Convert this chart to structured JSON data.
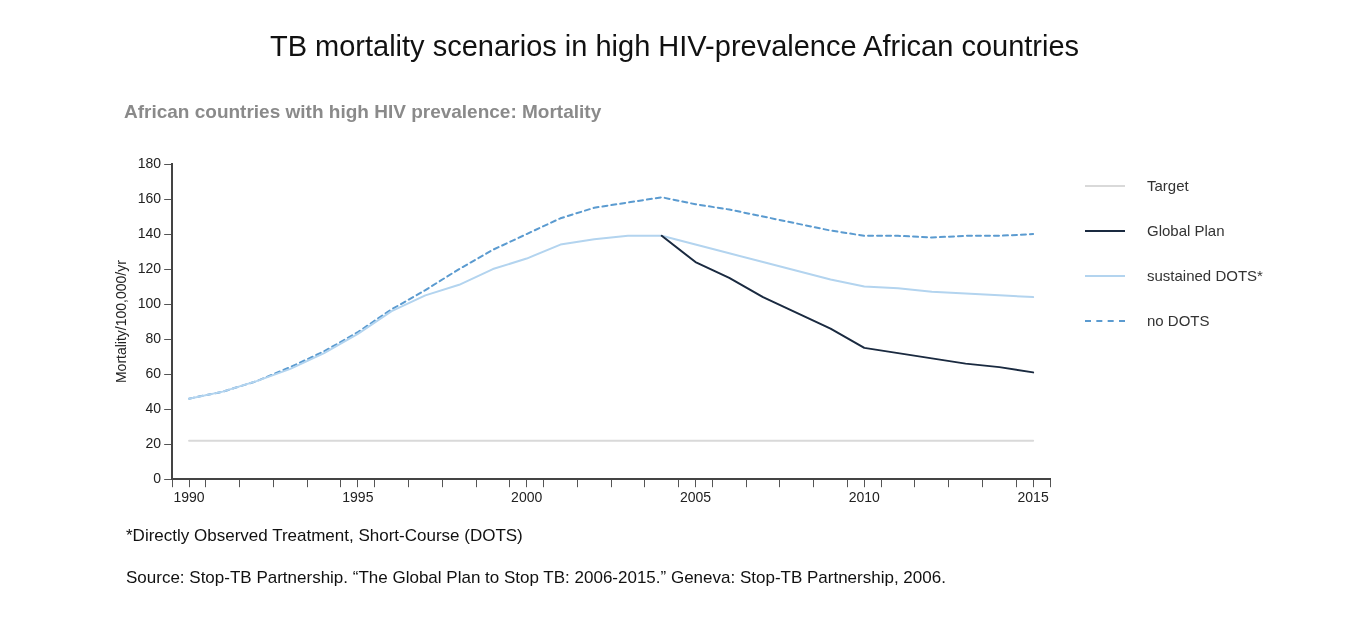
{
  "chart_data": {
    "type": "line",
    "title": "TB mortality scenarios in high HIV-prevalence African countries",
    "subtitle": "African countries with high HIV prevalence: Mortality",
    "ylabel": "Mortality/100,000/yr",
    "x": [
      1990,
      1991,
      1992,
      1993,
      1994,
      1995,
      1996,
      1997,
      1998,
      1999,
      2000,
      2001,
      2002,
      2003,
      2004,
      2005,
      2006,
      2007,
      2008,
      2009,
      2010,
      2011,
      2012,
      2013,
      2014,
      2015
    ],
    "series": [
      {
        "name": "Target",
        "color": "#d9d9d9",
        "x": [
          1990,
          2015
        ],
        "values": [
          22,
          22
        ]
      },
      {
        "name": "Global Plan",
        "color": "#1a2a40",
        "values": [
          null,
          null,
          null,
          null,
          null,
          null,
          null,
          null,
          null,
          null,
          null,
          null,
          null,
          null,
          139,
          124,
          115,
          104,
          95,
          86,
          75,
          72,
          69,
          66,
          64,
          61
        ]
      },
      {
        "name": "sustained DOTS*",
        "color": "#b3d4ef",
        "values": [
          46,
          50,
          56,
          63,
          72,
          83,
          96,
          105,
          111,
          120,
          126,
          134,
          137,
          139,
          139,
          134,
          129,
          124,
          119,
          114,
          110,
          109,
          107,
          106,
          105,
          104
        ]
      },
      {
        "name": "no DOTS",
        "color": "#5b9bd0",
        "line_style": "dashed",
        "values": [
          46,
          50,
          56,
          64,
          73,
          84,
          97,
          108,
          120,
          131,
          140,
          149,
          155,
          158,
          161,
          157,
          154,
          150,
          146,
          142,
          139,
          139,
          138,
          139,
          139,
          140
        ]
      }
    ],
    "xlim": [
      1989.5,
      2015.5
    ],
    "xticks": [
      {
        "value": 1989.5,
        "label": null
      },
      1990,
      {
        "value": 1990.5,
        "label": null
      },
      {
        "value": 1991.5,
        "label": null
      },
      {
        "value": 1992.5,
        "label": null
      },
      {
        "value": 1993.5,
        "label": null
      },
      {
        "value": 1994.5,
        "label": null
      },
      1995,
      {
        "value": 1995.5,
        "label": null
      },
      {
        "value": 1996.5,
        "label": null
      },
      {
        "value": 1997.5,
        "label": null
      },
      {
        "value": 1998.5,
        "label": null
      },
      {
        "value": 1999.5,
        "label": null
      },
      2000,
      {
        "value": 2000.5,
        "label": null
      },
      {
        "value": 2001.5,
        "label": null
      },
      {
        "value": 2002.5,
        "label": null
      },
      {
        "value": 2003.5,
        "label": null
      },
      {
        "value": 2004.5,
        "label": null
      },
      2005,
      {
        "value": 2005.5,
        "label": null
      },
      {
        "value": 2006.5,
        "label": null
      },
      {
        "value": 2007.5,
        "label": null
      },
      {
        "value": 2008.5,
        "label": null
      },
      {
        "value": 2009.5,
        "label": null
      },
      2010,
      {
        "value": 2010.5,
        "label": null
      },
      {
        "value": 2011.5,
        "label": null
      },
      {
        "value": 2012.5,
        "label": null
      },
      {
        "value": 2013.5,
        "label": null
      },
      {
        "value": 2014.5,
        "label": null
      },
      2015,
      {
        "value": 2015.5,
        "label": null
      }
    ],
    "ylim": [
      0,
      180
    ],
    "yticks": [
      0,
      20,
      40,
      60,
      80,
      100,
      120,
      140,
      160,
      180
    ],
    "grid": false,
    "legend": "right",
    "marker": "none",
    "line_style": "solid",
    "annotations": [
      "*Directly Observed Treatment, Short-Course (DOTS)",
      "Source: Stop-TB Partnership. “The Global Plan to Stop TB: 2006-2015.” Geneva: Stop-TB Partnership, 2006."
    ]
  }
}
